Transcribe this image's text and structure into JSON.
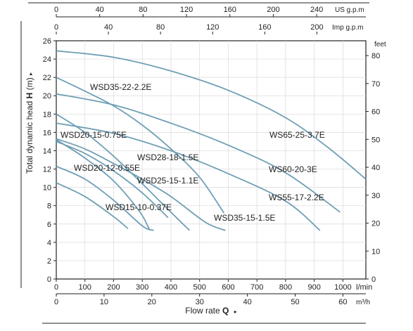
{
  "chart_data": {
    "type": "line",
    "y_axis_label": "Total dynamic head",
    "y_axis_symbol": "H",
    "y_axis_unit": "(m)",
    "y_range_m": [
      0,
      26
    ],
    "y_ticks_m": [
      0,
      2,
      4,
      6,
      8,
      10,
      12,
      14,
      16,
      18,
      20,
      22,
      24,
      26
    ],
    "y_right_label": "feet",
    "y_right_ticks_ft": [
      0,
      10,
      20,
      30,
      40,
      50,
      60,
      70,
      80
    ],
    "x_axis_label": "Flow rate",
    "x_axis_symbol": "Q",
    "x_range_lmin": [
      0,
      1080
    ],
    "x_ticks_lmin": [
      0,
      100,
      200,
      300,
      400,
      500,
      600,
      700,
      800,
      900,
      1000
    ],
    "x_unit_lmin": "l/min",
    "x_ticks_m3h": [
      0,
      10,
      20,
      30,
      40,
      50,
      60
    ],
    "x_unit_m3h": "m³/h",
    "x_ticks_usgpm": [
      0,
      40,
      80,
      120,
      160,
      200,
      240
    ],
    "x_unit_usgpm": "US g.p.m",
    "x_ticks_impgpm": [
      0,
      40,
      80,
      120,
      160,
      200
    ],
    "x_unit_impgpm": "Imp g.p.m",
    "series": [
      {
        "name": "WS65-25-3.7E",
        "points": [
          [
            0,
            24.9
          ],
          [
            200,
            24.2
          ],
          [
            400,
            22.7
          ],
          [
            600,
            20.6
          ],
          [
            800,
            17.6
          ],
          [
            950,
            14.3
          ],
          [
            1080,
            10.9
          ]
        ]
      },
      {
        "name": "WS60-20-3E",
        "points": [
          [
            0,
            20.2
          ],
          [
            200,
            19.0
          ],
          [
            400,
            17.0
          ],
          [
            600,
            14.6
          ],
          [
            800,
            11.6
          ],
          [
            990,
            7.3
          ]
        ]
      },
      {
        "name": "WS55-17-2.2E",
        "points": [
          [
            0,
            17.0
          ],
          [
            200,
            15.9
          ],
          [
            400,
            14.0
          ],
          [
            600,
            11.5
          ],
          [
            800,
            8.5
          ],
          [
            920,
            5.3
          ]
        ]
      },
      {
        "name": "WSD35-22-2.2E",
        "points": [
          [
            0,
            22.0
          ],
          [
            100,
            20.5
          ],
          [
            200,
            18.9
          ],
          [
            300,
            16.8
          ],
          [
            400,
            14.2
          ],
          [
            500,
            11.1
          ],
          [
            585,
            7.2
          ]
        ]
      },
      {
        "name": "WSD35-15-1.5E",
        "points": [
          [
            0,
            15.3
          ],
          [
            100,
            14.2
          ],
          [
            200,
            12.6
          ],
          [
            300,
            10.9
          ],
          [
            400,
            9.0
          ],
          [
            520,
            6.2
          ],
          [
            590,
            5.3
          ]
        ]
      },
      {
        "name": "WSD28-18-1.5E",
        "points": [
          [
            0,
            18.0
          ],
          [
            100,
            16.0
          ],
          [
            200,
            13.4
          ],
          [
            300,
            10.4
          ],
          [
            380,
            7.9
          ],
          [
            465,
            5.3
          ]
        ]
      },
      {
        "name": "WSD25-15-1.1E",
        "points": [
          [
            0,
            15.0
          ],
          [
            100,
            13.7
          ],
          [
            200,
            11.8
          ],
          [
            300,
            9.4
          ],
          [
            390,
            6.7
          ]
        ]
      },
      {
        "name": "WSD20-15-0.75E",
        "points": [
          [
            0,
            15.2
          ],
          [
            100,
            13.2
          ],
          [
            200,
            10.7
          ],
          [
            290,
            7.4
          ],
          [
            325,
            5.4
          ]
        ]
      },
      {
        "name": "WSD20-12-0.55E",
        "points": [
          [
            0,
            12.3
          ],
          [
            100,
            10.9
          ],
          [
            200,
            8.6
          ],
          [
            300,
            5.8
          ],
          [
            340,
            5.3
          ]
        ]
      },
      {
        "name": "WSD15-10-0.37E",
        "points": [
          [
            0,
            10.5
          ],
          [
            100,
            9.0
          ],
          [
            200,
            6.8
          ],
          [
            250,
            5.5
          ]
        ]
      }
    ]
  }
}
